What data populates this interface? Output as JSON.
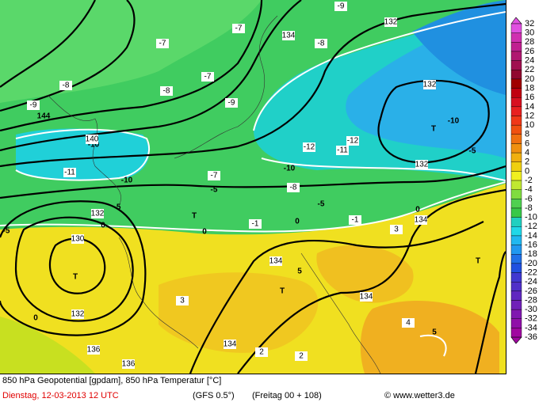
{
  "map": {
    "footer": {
      "line1": "850 hPa Geopotential [gpdam], 850 hPa Temperatur [°C]",
      "date": "Dienstag, 12-03-2013  12 UTC",
      "model": "(GFS 0.5°)",
      "run": "(Freitag 00 + 108)",
      "credit": "© www.wetter3.de"
    },
    "colorbar": [
      "32",
      "30",
      "28",
      "26",
      "24",
      "22",
      "20",
      "18",
      "16",
      "14",
      "12",
      "10",
      "8",
      "6",
      "4",
      "2",
      "0",
      "-2",
      "-4",
      "-6",
      "-8",
      "-10",
      "-12",
      "-14",
      "-16",
      "-18",
      "-20",
      "-22",
      "-24",
      "-26",
      "-28",
      "-30",
      "-32",
      "-34",
      "-36"
    ],
    "labels": [
      "T",
      "T",
      "T",
      "T",
      "T",
      "-10",
      "-10",
      "-10",
      "-10",
      "-5",
      "-5",
      "-5",
      "-5",
      "-5",
      "0",
      "0",
      "0",
      "0",
      "0",
      "5",
      "5",
      "144",
      "132",
      "132",
      "132",
      "132",
      "132",
      "134",
      "134",
      "134",
      "134",
      "134",
      "130",
      "136",
      "136",
      "140",
      "-7",
      "-7",
      "-7",
      "-7",
      "-8",
      "-8",
      "-8",
      "-8",
      "-9",
      "-9",
      "-9",
      "-12",
      "-12",
      "-11",
      "-11",
      "2",
      "2",
      "3",
      "3",
      "4",
      "-1",
      "-1"
    ]
  }
}
